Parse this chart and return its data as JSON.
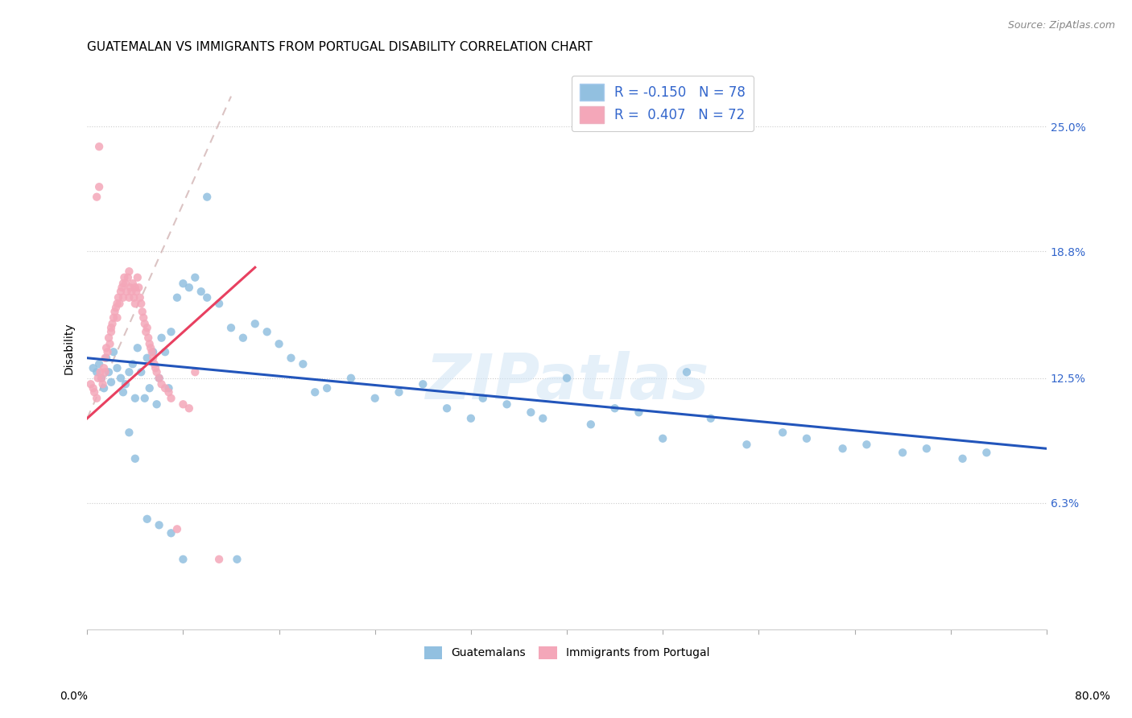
{
  "title": "GUATEMALAN VS IMMIGRANTS FROM PORTUGAL DISABILITY CORRELATION CHART",
  "source": "Source: ZipAtlas.com",
  "ylabel": "Disability",
  "ytick_vals": [
    6.3,
    12.5,
    18.8,
    25.0
  ],
  "xlim": [
    0.0,
    80.0
  ],
  "ylim": [
    0.0,
    28.0
  ],
  "blue_color": "#92C0E0",
  "pink_color": "#F4A7B9",
  "blue_line_color": "#2255BB",
  "pink_line_color": "#E84060",
  "watermark": "ZIPatlas",
  "blue_r": "-0.150",
  "blue_n": "78",
  "pink_r": "0.407",
  "pink_n": "72",
  "blue_scatter_x": [
    0.5,
    0.8,
    1.0,
    1.2,
    1.4,
    1.6,
    1.8,
    2.0,
    2.2,
    2.5,
    2.8,
    3.0,
    3.2,
    3.5,
    3.8,
    4.0,
    4.2,
    4.5,
    4.8,
    5.0,
    5.2,
    5.5,
    5.8,
    6.0,
    6.2,
    6.5,
    6.8,
    7.0,
    7.5,
    8.0,
    8.5,
    9.0,
    9.5,
    10.0,
    11.0,
    12.0,
    13.0,
    14.0,
    15.0,
    16.0,
    17.0,
    18.0,
    19.0,
    20.0,
    22.0,
    24.0,
    26.0,
    28.0,
    30.0,
    32.0,
    33.0,
    35.0,
    37.0,
    38.0,
    40.0,
    42.0,
    44.0,
    46.0,
    48.0,
    50.0,
    52.0,
    55.0,
    58.0,
    60.0,
    63.0,
    65.0,
    68.0,
    70.0,
    73.0,
    75.0,
    3.5,
    4.0,
    5.0,
    6.0,
    7.0,
    8.0,
    10.0,
    12.5
  ],
  "blue_scatter_y": [
    13.0,
    12.8,
    13.2,
    12.5,
    12.0,
    13.5,
    12.8,
    12.3,
    13.8,
    13.0,
    12.5,
    11.8,
    12.2,
    12.8,
    13.2,
    11.5,
    14.0,
    12.8,
    11.5,
    13.5,
    12.0,
    13.8,
    11.2,
    12.5,
    14.5,
    13.8,
    12.0,
    14.8,
    16.5,
    17.2,
    17.0,
    17.5,
    16.8,
    16.5,
    16.2,
    15.0,
    14.5,
    15.2,
    14.8,
    14.2,
    13.5,
    13.2,
    11.8,
    12.0,
    12.5,
    11.5,
    11.8,
    12.2,
    11.0,
    10.5,
    11.5,
    11.2,
    10.8,
    10.5,
    12.5,
    10.2,
    11.0,
    10.8,
    9.5,
    12.8,
    10.5,
    9.2,
    9.8,
    9.5,
    9.0,
    9.2,
    8.8,
    9.0,
    8.5,
    8.8,
    9.8,
    8.5,
    5.5,
    5.2,
    4.8,
    3.5,
    21.5,
    3.5
  ],
  "pink_scatter_x": [
    0.3,
    0.5,
    0.6,
    0.8,
    0.9,
    1.0,
    1.1,
    1.2,
    1.3,
    1.4,
    1.5,
    1.5,
    1.6,
    1.7,
    1.8,
    1.9,
    2.0,
    2.0,
    2.1,
    2.2,
    2.3,
    2.4,
    2.5,
    2.5,
    2.6,
    2.7,
    2.8,
    2.9,
    3.0,
    3.0,
    3.1,
    3.2,
    3.3,
    3.4,
    3.5,
    3.5,
    3.6,
    3.7,
    3.8,
    3.9,
    4.0,
    4.0,
    4.1,
    4.2,
    4.3,
    4.4,
    4.5,
    4.6,
    4.7,
    4.8,
    4.9,
    5.0,
    5.1,
    5.2,
    5.3,
    5.4,
    5.5,
    5.6,
    5.7,
    5.8,
    6.0,
    6.2,
    6.5,
    6.8,
    7.0,
    7.5,
    8.0,
    8.5,
    9.0,
    11.0,
    1.0,
    0.8
  ],
  "pink_scatter_y": [
    12.2,
    12.0,
    11.8,
    11.5,
    12.5,
    24.0,
    12.8,
    12.5,
    12.2,
    13.0,
    12.8,
    13.5,
    14.0,
    13.8,
    14.5,
    14.2,
    15.0,
    14.8,
    15.2,
    15.5,
    15.8,
    16.0,
    16.2,
    15.5,
    16.5,
    16.2,
    16.8,
    17.0,
    17.2,
    16.5,
    17.5,
    17.2,
    16.8,
    17.5,
    17.8,
    16.5,
    17.0,
    16.8,
    17.2,
    16.5,
    17.0,
    16.2,
    16.8,
    17.5,
    17.0,
    16.5,
    16.2,
    15.8,
    15.5,
    15.2,
    14.8,
    15.0,
    14.5,
    14.2,
    14.0,
    13.8,
    13.5,
    13.2,
    13.0,
    12.8,
    12.5,
    12.2,
    12.0,
    11.8,
    11.5,
    5.0,
    11.2,
    11.0,
    12.8,
    3.5,
    22.0,
    21.5
  ],
  "title_fontsize": 11,
  "source_fontsize": 9,
  "ylabel_fontsize": 10,
  "tick_fontsize": 10,
  "legend_fontsize": 12
}
